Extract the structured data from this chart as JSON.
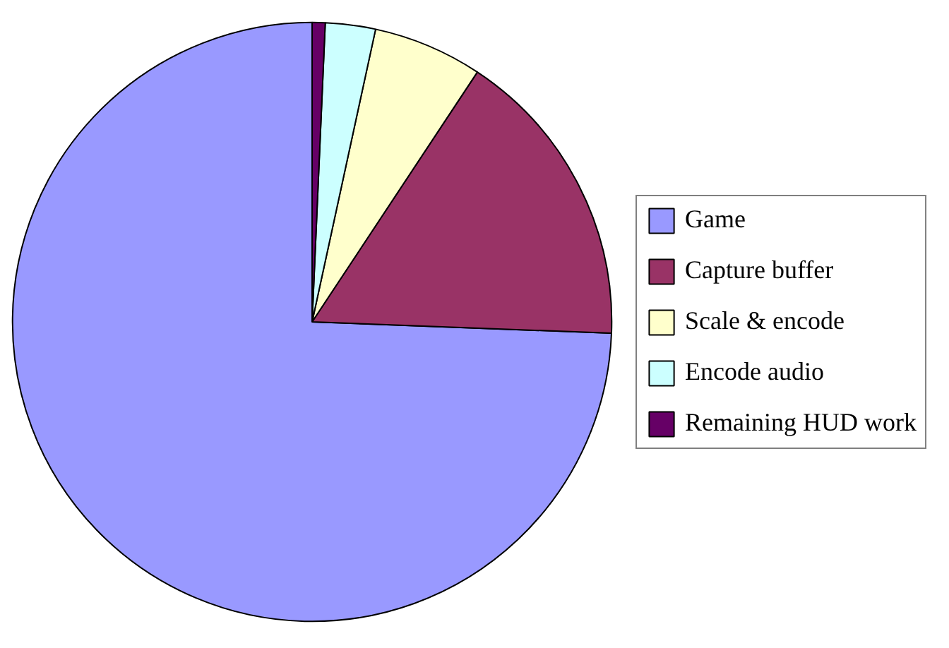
{
  "chart_data": {
    "type": "pie",
    "categories": [
      "Game",
      "Capture buffer",
      "Scale & encode",
      "Encode audio",
      "Remaining HUD work"
    ],
    "values": [
      74.4,
      16.3,
      5.9,
      2.7,
      0.7
    ],
    "colors": [
      "#9999ff",
      "#993366",
      "#ffffcc",
      "#ccffff",
      "#660066"
    ],
    "legend": "right"
  }
}
